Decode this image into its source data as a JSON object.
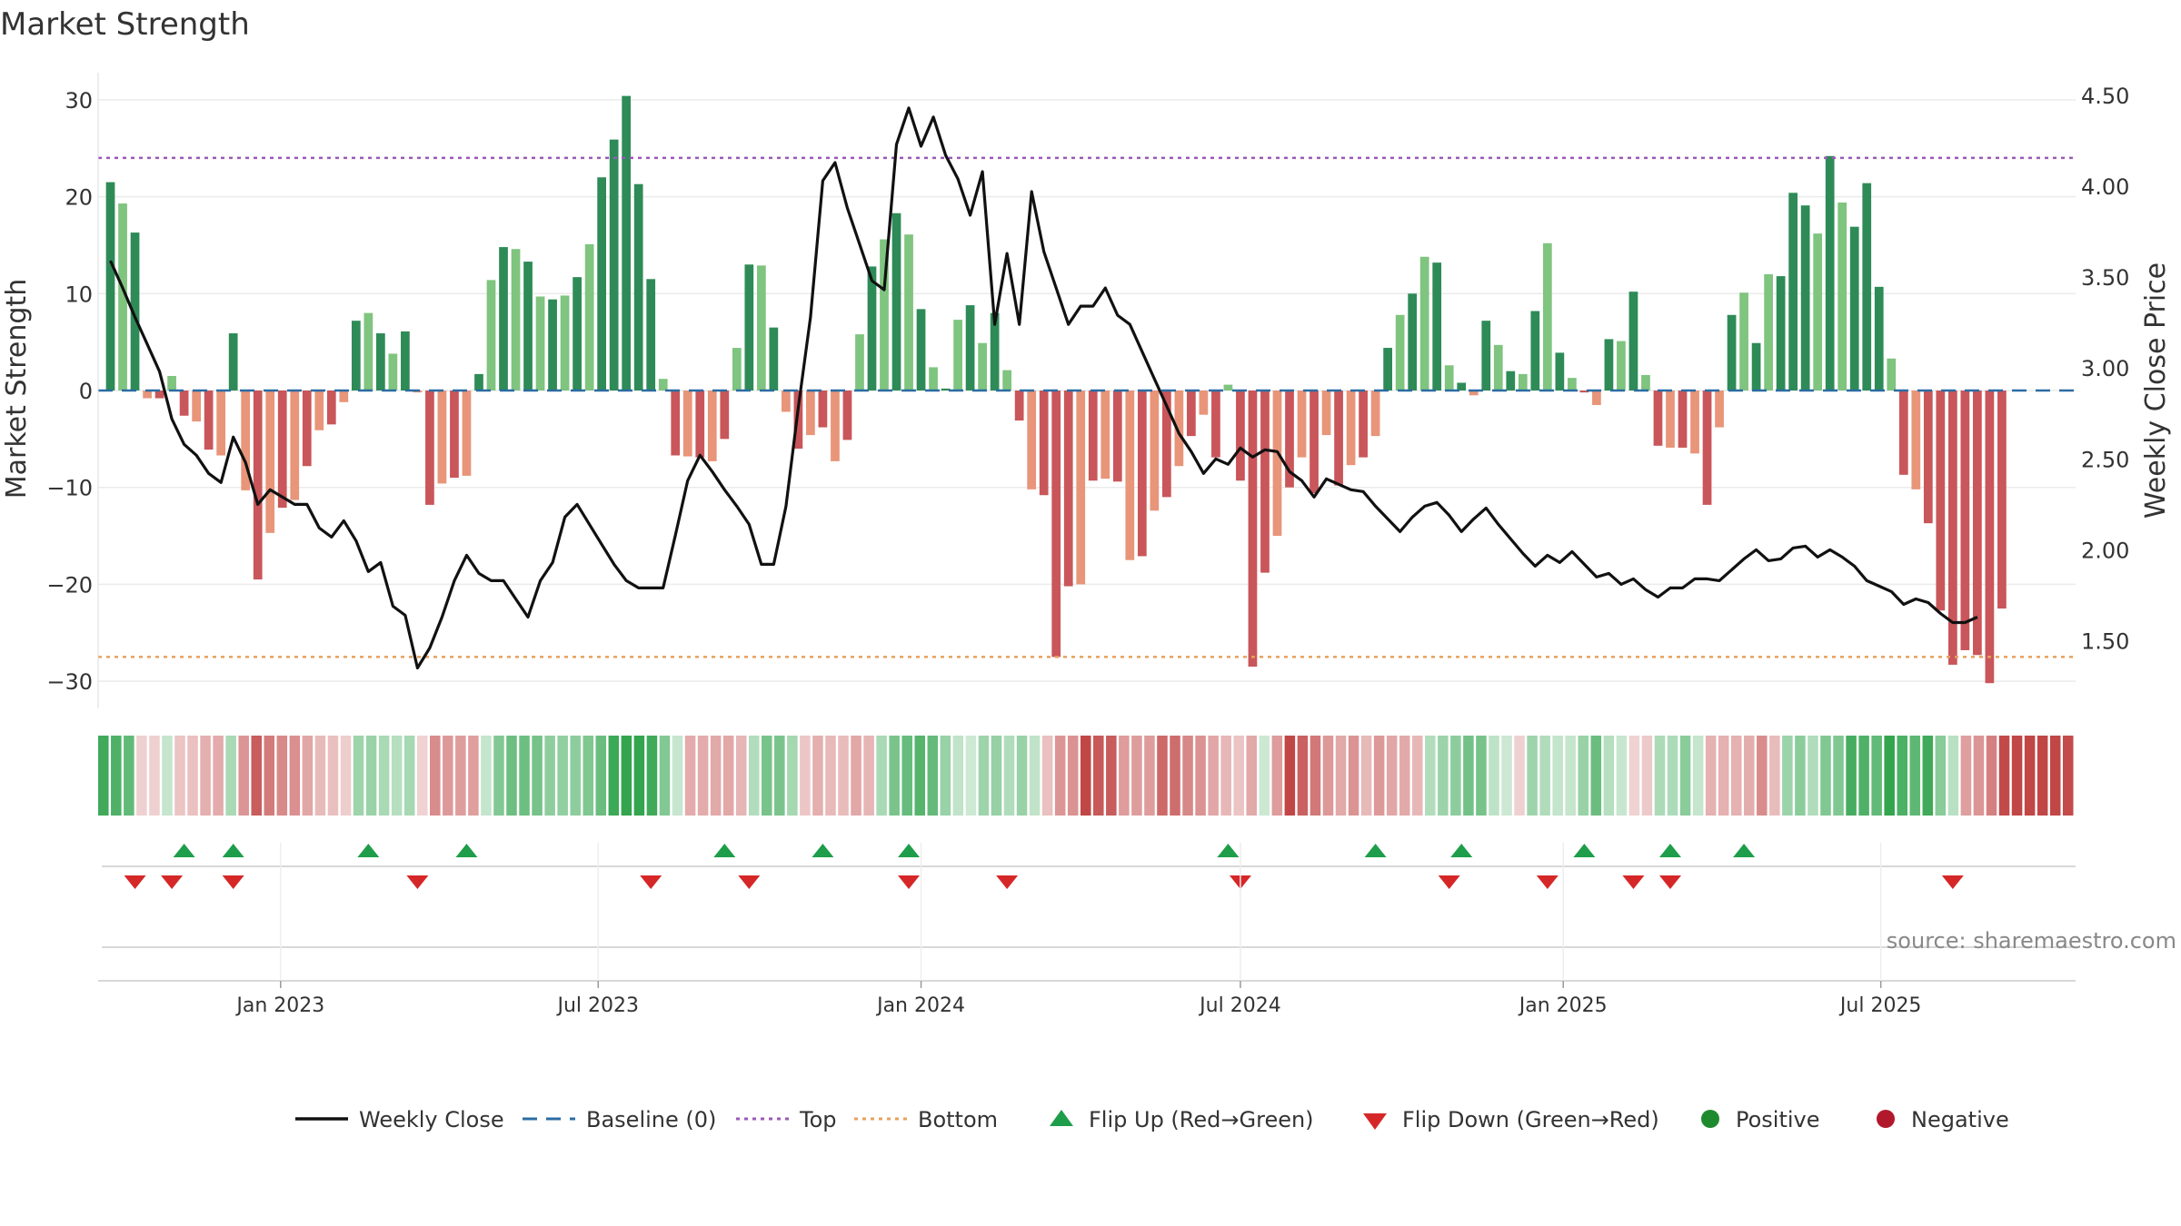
{
  "chart_data": {
    "type": "bar",
    "title": "Market Strength",
    "ylabel": "Market Strength",
    "y2label": "Weekly Close Price",
    "ylim": [
      -32,
      32
    ],
    "y2lim": [
      1.28,
      4.5
    ],
    "yticks": [
      30,
      20,
      10,
      0,
      -10,
      -20,
      -30
    ],
    "yticklabels": [
      "30",
      "20",
      "10",
      "0",
      "−10",
      "−20",
      "−30"
    ],
    "y2ticks": [
      4.5,
      4.0,
      3.5,
      3.0,
      2.5,
      2.0,
      1.5
    ],
    "y2ticklabels": [
      "4.50",
      "4.00",
      "3.50",
      "3.00",
      "2.50",
      "2.00",
      "1.50"
    ],
    "xrange": [
      "2022-09-19",
      "2025-10-20"
    ],
    "xticks": [
      {
        "date": "2023-01-01",
        "label": "Jan 2023"
      },
      {
        "date": "2023-07-01",
        "label": "Jul 2023"
      },
      {
        "date": "2024-01-01",
        "label": "Jan 2024"
      },
      {
        "date": "2024-07-01",
        "label": "Jul 2024"
      },
      {
        "date": "2025-01-01",
        "label": "Jan 2025"
      },
      {
        "date": "2025-07-01",
        "label": "Jul 2025"
      }
    ],
    "start_date": "2022-09-26",
    "week_step_days": 7,
    "reference_lines": {
      "baseline": 0,
      "top": 24,
      "bottom": -27.5
    },
    "strength": [
      21.5,
      19.3,
      16.3,
      -0.8,
      -0.8,
      1.5,
      -2.6,
      -3.2,
      -6.1,
      -6.7,
      5.9,
      -10.3,
      -19.5,
      -14.7,
      -12.1,
      -11.3,
      -7.8,
      -4.1,
      -3.5,
      -1.2,
      7.2,
      8.0,
      5.9,
      3.8,
      6.1,
      -0.2,
      -11.8,
      -9.6,
      -9.0,
      -8.8,
      1.7,
      11.4,
      14.8,
      14.6,
      13.3,
      9.7,
      9.4,
      9.8,
      11.7,
      15.1,
      22.0,
      25.9,
      30.4,
      21.3,
      11.5,
      1.2,
      -6.7,
      -6.8,
      -6.9,
      -7.3,
      -5.0,
      4.4,
      13.0,
      12.9,
      6.5,
      -2.2,
      -6.0,
      -4.6,
      -3.8,
      -7.3,
      -5.1,
      5.8,
      12.8,
      15.6,
      18.3,
      16.1,
      8.4,
      2.4,
      0.2,
      7.3,
      8.8,
      4.9,
      8.0,
      2.1,
      -3.1,
      -10.2,
      -10.8,
      -27.5,
      -20.2,
      -20.0,
      -9.3,
      -9.1,
      -9.4,
      -17.5,
      -17.1,
      -12.4,
      -11.0,
      -7.8,
      -4.7,
      -2.5,
      -6.9,
      0.6,
      -9.3,
      -28.5,
      -18.8,
      -15.0,
      -10.0,
      -6.9,
      -10.6,
      -4.6,
      -9.8,
      -7.7,
      -6.9,
      -4.7,
      4.4,
      7.8,
      10.0,
      13.8,
      13.2,
      2.6,
      0.8,
      -0.5,
      7.2,
      4.7,
      2.0,
      1.7,
      8.2,
      15.2,
      3.9,
      1.3,
      -0.2,
      -1.5,
      5.3,
      5.1,
      10.2,
      1.6,
      -5.7,
      -5.9,
      -5.9,
      -6.5,
      -11.8,
      -3.8,
      7.8,
      10.1,
      4.9,
      12.0,
      11.8,
      20.4,
      19.1,
      16.2,
      24.2,
      19.4,
      16.9,
      21.4,
      10.7,
      3.3,
      -8.7,
      -10.2,
      -13.7,
      -22.7,
      -28.3,
      -26.8,
      -27.3,
      -30.2,
      -22.5
    ],
    "close": [
      3.59,
      3.44,
      3.28,
      3.13,
      2.98,
      2.72,
      2.58,
      2.52,
      2.42,
      2.37,
      2.62,
      2.48,
      2.25,
      2.33,
      2.29,
      2.25,
      2.25,
      2.12,
      2.07,
      2.16,
      2.05,
      1.88,
      1.93,
      1.69,
      1.64,
      1.35,
      1.46,
      1.63,
      1.83,
      1.97,
      1.87,
      1.83,
      1.83,
      1.73,
      1.63,
      1.83,
      1.93,
      2.18,
      2.25,
      2.14,
      2.03,
      1.92,
      1.83,
      1.79,
      1.79,
      1.79,
      2.08,
      2.38,
      2.52,
      2.43,
      2.33,
      2.24,
      2.14,
      1.92,
      1.92,
      2.24,
      2.78,
      3.28,
      4.03,
      4.13,
      3.88,
      3.68,
      3.48,
      3.43,
      4.23,
      4.43,
      4.22,
      4.38,
      4.17,
      4.04,
      3.84,
      4.08,
      3.24,
      3.63,
      3.24,
      3.97,
      3.64,
      3.44,
      3.24,
      3.34,
      3.34,
      3.44,
      3.29,
      3.24,
      3.09,
      2.94,
      2.79,
      2.64,
      2.54,
      2.42,
      2.5,
      2.47,
      2.56,
      2.51,
      2.55,
      2.54,
      2.43,
      2.38,
      2.29,
      2.39,
      2.36,
      2.33,
      2.32,
      2.24,
      2.17,
      2.1,
      2.18,
      2.24,
      2.26,
      2.19,
      2.1,
      2.17,
      2.23,
      2.14,
      2.06,
      1.98,
      1.91,
      1.97,
      1.93,
      1.99,
      1.92,
      1.85,
      1.87,
      1.81,
      1.84,
      1.78,
      1.74,
      1.79,
      1.79,
      1.84,
      1.84,
      1.83,
      1.89,
      1.95,
      2.0,
      1.94,
      1.95,
      2.01,
      2.02,
      1.96,
      2.0,
      1.96,
      1.91,
      1.83,
      1.8,
      1.77,
      1.7,
      1.73,
      1.71,
      1.65,
      1.6,
      1.6,
      1.63
    ],
    "flip_up_dates": [
      "2022-11-07",
      "2022-12-05",
      "2023-02-20",
      "2023-04-17",
      "2023-09-11",
      "2023-11-06",
      "2023-12-25",
      "2024-06-24",
      "2024-09-16",
      "2024-11-04",
      "2025-01-13",
      "2025-03-03",
      "2025-04-14"
    ],
    "flip_down_dates": [
      "2022-10-10",
      "2022-10-31",
      "2022-12-05",
      "2023-03-20",
      "2023-07-31",
      "2023-09-25",
      "2023-12-25",
      "2024-02-19",
      "2024-07-01",
      "2024-10-28",
      "2024-12-23",
      "2025-02-10",
      "2025-03-03",
      "2025-08-11"
    ],
    "annotations": [
      "source: sharemaestro.com"
    ],
    "legend_position": "bottom",
    "legend": [
      {
        "label": "Weekly Close",
        "type": "line",
        "color": "#111111"
      },
      {
        "label": "Baseline (0)",
        "type": "dash",
        "color": "#2b6ca3"
      },
      {
        "label": "Top",
        "type": "dot",
        "color": "#9b59b6"
      },
      {
        "label": "Bottom",
        "type": "dot",
        "color": "#e8a15c"
      },
      {
        "label": "Flip Up (Red→Green)",
        "type": "tri-up",
        "color": "#1e9e4a"
      },
      {
        "label": "Flip Down (Green→Red)",
        "type": "tri-down",
        "color": "#d62728"
      },
      {
        "label": "Positive",
        "type": "circle",
        "color": "#1e8a2e"
      },
      {
        "label": "Negative",
        "type": "circle",
        "color": "#b2182b"
      }
    ]
  },
  "colors": {
    "strong_green": "#2e8b57",
    "light_green": "#7fc47f",
    "strong_red": "#c9565a",
    "light_red": "#e8957a",
    "line": "#111111",
    "grid": "#ebebeb"
  }
}
